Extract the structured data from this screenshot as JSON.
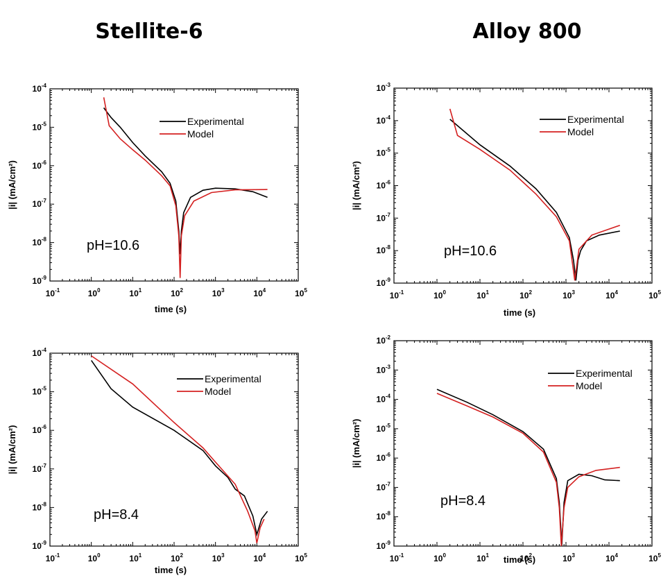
{
  "columns": [
    {
      "title": "Stellite-6"
    },
    {
      "title": "Alloy 800"
    }
  ],
  "colors": {
    "experimental": "#000000",
    "model": "#d42020"
  },
  "chart_data": [
    {
      "type": "line",
      "xscale": "log",
      "yscale": "log",
      "xlabel": "time (s)",
      "ylabel": "|i| (mA/cm²)",
      "xlim": [
        0.1,
        100000
      ],
      "ylim": [
        1e-09,
        0.0001
      ],
      "xticks": [
        "10-1",
        "100",
        "101",
        "102",
        "103",
        "104",
        "105"
      ],
      "yticks": [
        "10-4",
        "10-5",
        "10-6",
        "10-7",
        "10-8",
        "10-9"
      ],
      "annotation": "pH=10.6",
      "legend": "top-right",
      "series": [
        {
          "name": "Experimental",
          "color": "#000000",
          "points": [
            [
              2,
              3.2e-05
            ],
            [
              3,
              1.8e-05
            ],
            [
              5,
              1e-05
            ],
            [
              10,
              4e-06
            ],
            [
              20,
              1.8e-06
            ],
            [
              50,
              7e-07
            ],
            [
              80,
              3.5e-07
            ],
            [
              110,
              1.2e-07
            ],
            [
              130,
              2e-08
            ],
            [
              140,
              5e-09
            ],
            [
              150,
              2e-08
            ],
            [
              170,
              6e-08
            ],
            [
              250,
              1.5e-07
            ],
            [
              500,
              2.3e-07
            ],
            [
              1000,
              2.6e-07
            ],
            [
              3000,
              2.5e-07
            ],
            [
              8000,
              2.1e-07
            ],
            [
              18000,
              1.5e-07
            ]
          ]
        },
        {
          "name": "Model",
          "color": "#d42020",
          "points": [
            [
              2,
              6e-05
            ],
            [
              2.7,
              1.1e-05
            ],
            [
              5,
              5e-06
            ],
            [
              10,
              2.6e-06
            ],
            [
              20,
              1.4e-06
            ],
            [
              50,
              5.5e-07
            ],
            [
              80,
              3e-07
            ],
            [
              110,
              9e-08
            ],
            [
              130,
              1.5e-08
            ],
            [
              140,
              1.2e-09
            ],
            [
              150,
              1.5e-08
            ],
            [
              180,
              5e-08
            ],
            [
              300,
              1.2e-07
            ],
            [
              800,
              2e-07
            ],
            [
              3000,
              2.35e-07
            ],
            [
              18000,
              2.4e-07
            ]
          ]
        }
      ]
    },
    {
      "type": "line",
      "xscale": "log",
      "yscale": "log",
      "xlabel": "time (s)",
      "ylabel": "|i| (mA/cm²)",
      "xlim": [
        0.1,
        100000
      ],
      "ylim": [
        1e-09,
        0.001
      ],
      "xticks": [
        "10-1",
        "100",
        "101",
        "102",
        "103",
        "104",
        "105"
      ],
      "yticks": [
        "10-3",
        "10-4",
        "10-5",
        "10-6",
        "10-7",
        "10-8",
        "10-9"
      ],
      "annotation": "pH=10.6",
      "legend": "top-right",
      "series": [
        {
          "name": "Experimental",
          "color": "#000000",
          "points": [
            [
              2,
              0.00011
            ],
            [
              3,
              7e-05
            ],
            [
              10,
              1.8e-05
            ],
            [
              50,
              4e-06
            ],
            [
              200,
              8e-07
            ],
            [
              600,
              1.5e-07
            ],
            [
              1200,
              2.5e-08
            ],
            [
              1500,
              5e-09
            ],
            [
              1700,
              1.2e-09
            ],
            [
              1900,
              5e-09
            ],
            [
              2200,
              1e-08
            ],
            [
              3000,
              2e-08
            ],
            [
              6000,
              3e-08
            ],
            [
              18000,
              4e-08
            ]
          ]
        },
        {
          "name": "Model",
          "color": "#d42020",
          "points": [
            [
              2,
              0.00023
            ],
            [
              3,
              3.5e-05
            ],
            [
              10,
              1.3e-05
            ],
            [
              50,
              3e-06
            ],
            [
              200,
              5.5e-07
            ],
            [
              600,
              1.1e-07
            ],
            [
              1200,
              2e-08
            ],
            [
              1600,
              1.2e-09
            ],
            [
              2000,
              1.1e-08
            ],
            [
              4000,
              3e-08
            ],
            [
              18000,
              6e-08
            ]
          ]
        }
      ]
    },
    {
      "type": "line",
      "xscale": "log",
      "yscale": "log",
      "xlabel": "time (s)",
      "ylabel": "|i| (mA/cm²)",
      "xlim": [
        0.1,
        100000
      ],
      "ylim": [
        1e-09,
        0.0001
      ],
      "xticks": [
        "10-1",
        "100",
        "101",
        "102",
        "103",
        "104",
        "105"
      ],
      "yticks": [
        "10-4",
        "10-5",
        "10-6",
        "10-7",
        "10-8",
        "10-9"
      ],
      "annotation": "pH=8.4",
      "legend": "top-right",
      "series": [
        {
          "name": "Experimental",
          "color": "#000000",
          "points": [
            [
              1,
              6.5e-05
            ],
            [
              3,
              1.2e-05
            ],
            [
              10,
              4e-06
            ],
            [
              100,
              1e-06
            ],
            [
              500,
              3e-07
            ],
            [
              1000,
              1.2e-07
            ],
            [
              2000,
              6e-08
            ],
            [
              3000,
              3e-08
            ],
            [
              5000,
              2e-08
            ],
            [
              8000,
              6e-09
            ],
            [
              10000,
              2e-09
            ],
            [
              13000,
              5e-09
            ],
            [
              18000,
              8e-09
            ]
          ]
        },
        {
          "name": "Model",
          "color": "#d42020",
          "points": [
            [
              1,
              8.5e-05
            ],
            [
              10,
              1.6e-05
            ],
            [
              100,
              1.6e-06
            ],
            [
              500,
              3.5e-07
            ],
            [
              1000,
              1.5e-07
            ],
            [
              3000,
              4e-08
            ],
            [
              6000,
              8e-09
            ],
            [
              9000,
              2.5e-09
            ],
            [
              10000,
              1.2e-09
            ],
            [
              12000,
              3e-09
            ],
            [
              15000,
              5e-09
            ]
          ]
        }
      ]
    },
    {
      "type": "line",
      "xscale": "log",
      "yscale": "log",
      "xlabel": "time (s)",
      "ylabel": "|i| (mA/cm²)",
      "xlim": [
        0.1,
        100000
      ],
      "ylim": [
        1e-09,
        0.01
      ],
      "xticks": [
        "10-1",
        "100",
        "101",
        "102",
        "103",
        "104",
        "105"
      ],
      "yticks": [
        "10-2",
        "10-3",
        "10-4",
        "10-5",
        "10-6",
        "10-7",
        "10-8",
        "10-9"
      ],
      "annotation": "pH=8.4",
      "legend": "top-right",
      "series": [
        {
          "name": "Experimental",
          "color": "#000000",
          "points": [
            [
              1,
              0.00022
            ],
            [
              5,
              8e-05
            ],
            [
              20,
              3e-05
            ],
            [
              100,
              8e-06
            ],
            [
              300,
              2e-06
            ],
            [
              600,
              2e-07
            ],
            [
              700,
              3e-08
            ],
            [
              800,
              1.1e-09
            ],
            [
              900,
              3e-08
            ],
            [
              1100,
              1.7e-07
            ],
            [
              2000,
              2.8e-07
            ],
            [
              4000,
              2.5e-07
            ],
            [
              8000,
              1.8e-07
            ],
            [
              18000,
              1.7e-07
            ]
          ]
        },
        {
          "name": "Model",
          "color": "#d42020",
          "points": [
            [
              1,
              0.00016
            ],
            [
              5,
              6e-05
            ],
            [
              20,
              2.5e-05
            ],
            [
              100,
              7e-06
            ],
            [
              300,
              1.6e-06
            ],
            [
              600,
              1.5e-07
            ],
            [
              700,
              2e-08
            ],
            [
              780,
              1e-09
            ],
            [
              900,
              2e-08
            ],
            [
              1100,
              1e-07
            ],
            [
              2000,
              2.3e-07
            ],
            [
              5000,
              3.8e-07
            ],
            [
              18000,
              4.8e-07
            ]
          ]
        }
      ]
    }
  ]
}
